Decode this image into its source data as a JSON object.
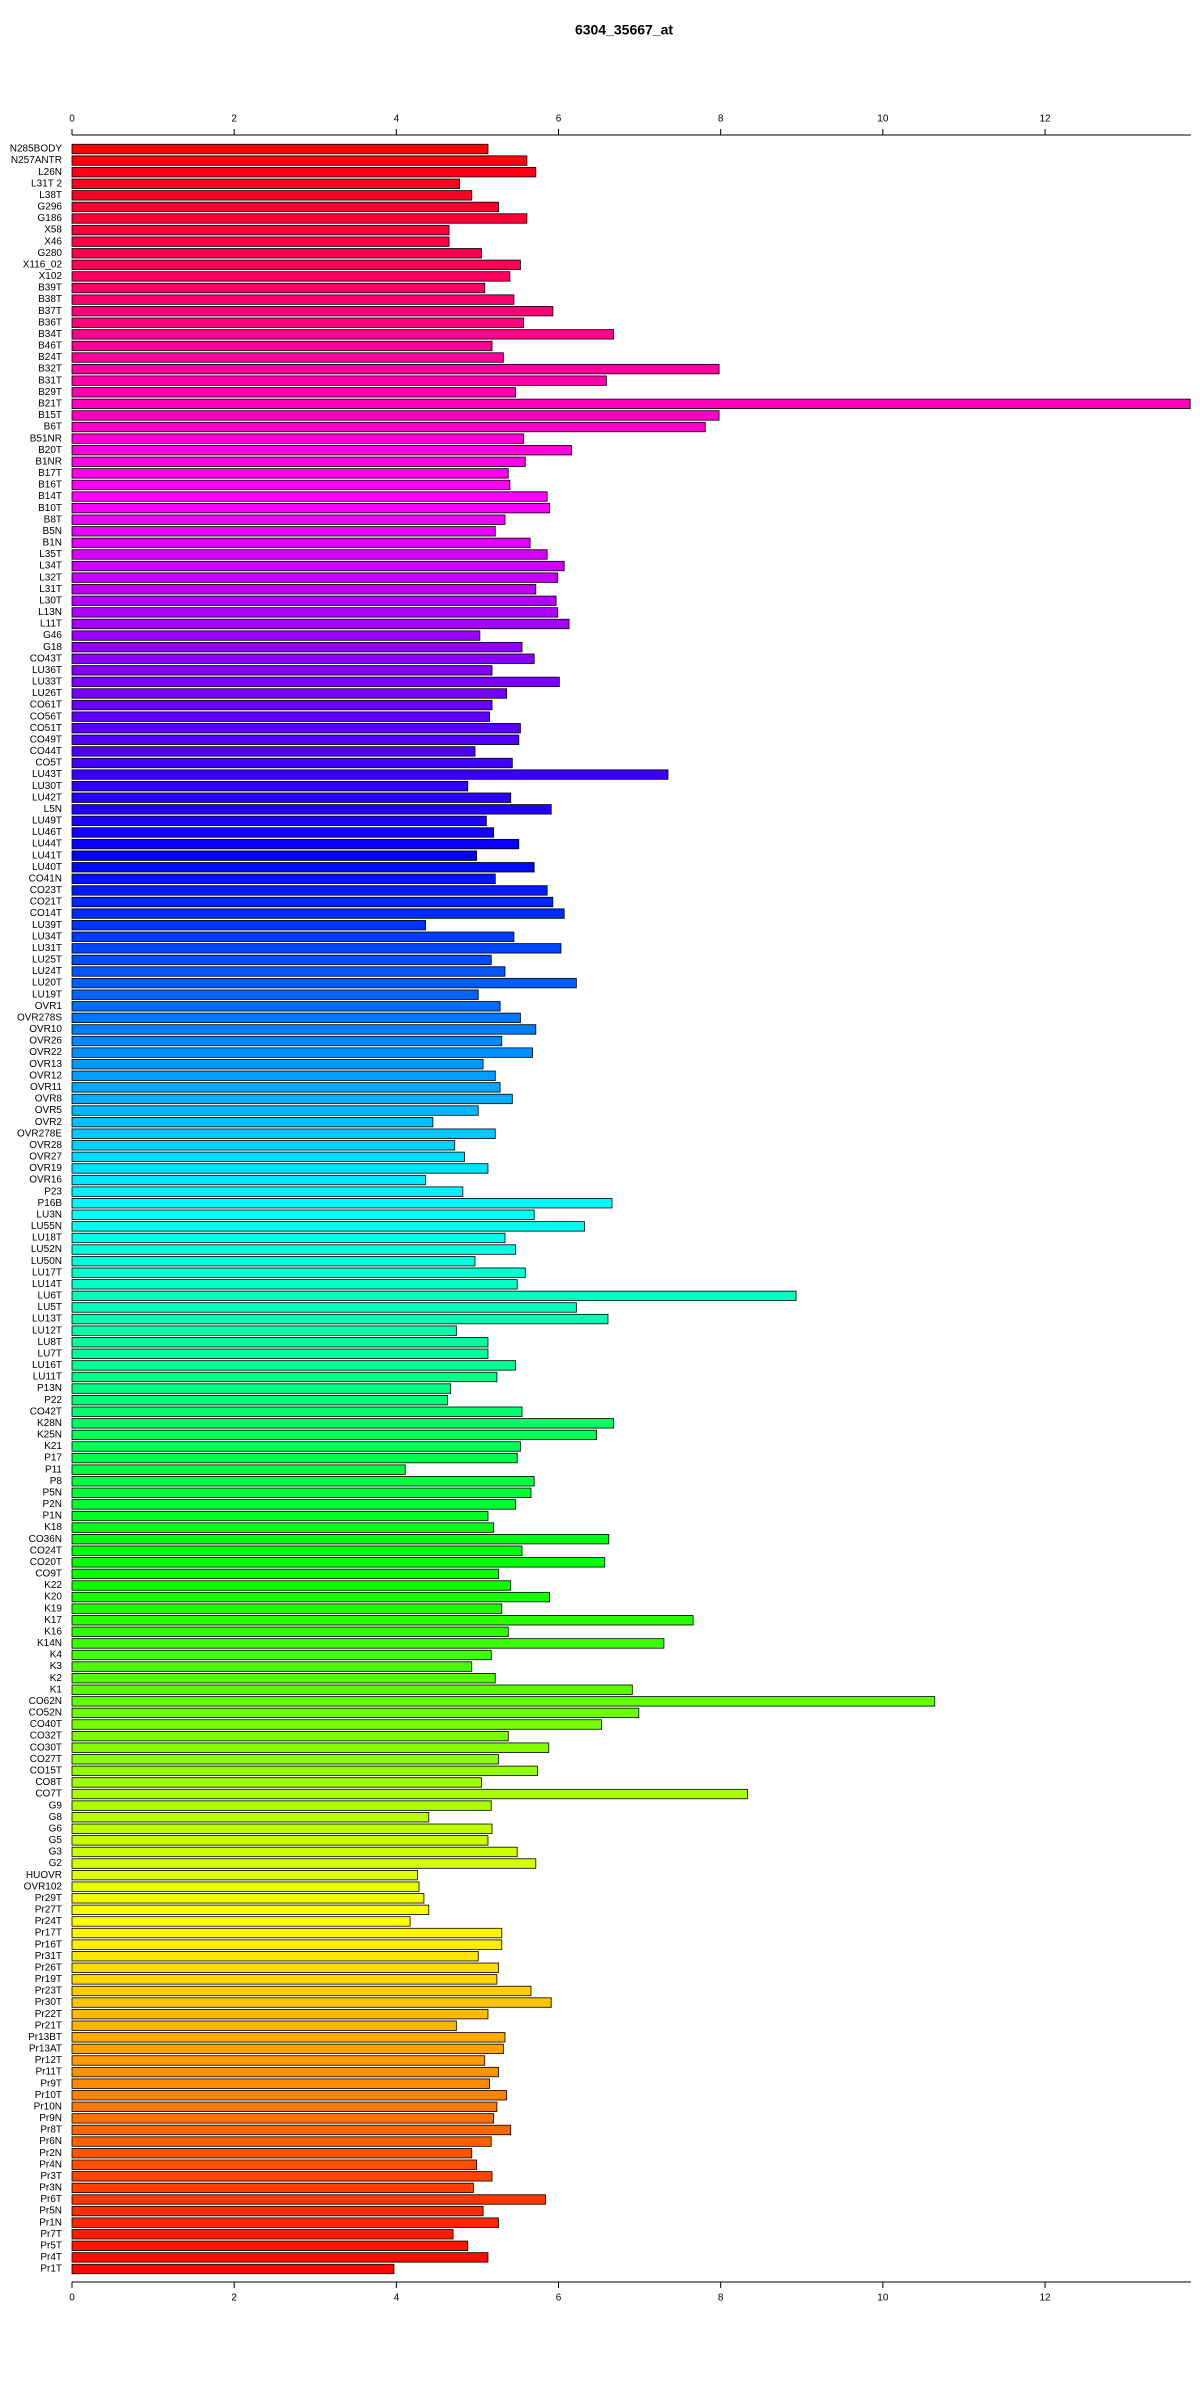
{
  "chart_data": {
    "type": "bar",
    "orientation": "horizontal",
    "title": "6304_35667_at",
    "categories": [
      "N285BODY",
      "N257ANTR",
      "L26N",
      "L31T 2",
      "L38T",
      "G296",
      "G186",
      "X58",
      "X46",
      "G280",
      "X116_02",
      "X102",
      "B39T",
      "B38T",
      "B37T",
      "B36T",
      "B34T",
      "B46T",
      "B24T",
      "B32T",
      "B31T",
      "B29T",
      "B21T",
      "B15T",
      "B6T",
      "B51NR",
      "B20T",
      "B1NR",
      "B17T",
      "B16T",
      "B14T",
      "B10T",
      "B8T",
      "B5N",
      "B1N",
      "L35T",
      "L34T",
      "L32T",
      "L31T",
      "L30T",
      "L13N",
      "L11T",
      "G46",
      "G18",
      "CO43T",
      "LU36T",
      "LU33T",
      "LU26T",
      "CO61T",
      "CO56T",
      "CO51T",
      "CO49T",
      "CO44T",
      "CO5T",
      "LU43T",
      "LU30T",
      "LU42T",
      "L5N",
      "LU49T",
      "LU46T",
      "LU44T",
      "LU41T",
      "LU40T",
      "CO41N",
      "CO23T",
      "CO21T",
      "CO14T",
      "LU39T",
      "LU34T",
      "LU31T",
      "LU25T",
      "LU24T",
      "LU20T",
      "LU19T",
      "OVR1",
      "OVR278S",
      "OVR10",
      "OVR26",
      "OVR22",
      "OVR13",
      "OVR12",
      "OVR11",
      "OVR8",
      "OVR5",
      "OVR2",
      "OVR278E",
      "OVR28",
      "OVR27",
      "OVR19",
      "OVR16",
      "P23",
      "P16B",
      "LU3N",
      "LU55N",
      "LU18T",
      "LU52N",
      "LU50N",
      "LU17T",
      "LU14T",
      "LU6T",
      "LU5T",
      "LU13T",
      "LU12T",
      "LU8T",
      "LU7T",
      "LU16T",
      "LU11T",
      "P13N",
      "P22",
      "CO42T",
      "K28N",
      "K25N",
      "K21",
      "P17",
      "P11",
      "P8",
      "P5N",
      "P2N",
      "P1N",
      "K18",
      "CO36N",
      "CO24T",
      "CO20T",
      "CO9T",
      "K22",
      "K20",
      "K19",
      "K17",
      "K16",
      "K14N",
      "K4",
      "K3",
      "K2",
      "K1",
      "CO62N",
      "CO52N",
      "CO40T",
      "CO32T",
      "CO30T",
      "CO27T",
      "CO15T",
      "CO8T",
      "CO7T",
      "G9",
      "G8",
      "G6",
      "G5",
      "G3",
      "G2",
      "HUOVR",
      "OVR102",
      "Pr29T",
      "Pr27T",
      "Pr24T",
      "Pr17T",
      "Pr16T",
      "Pr31T",
      "Pr26T",
      "Pr19T",
      "Pr23T",
      "Pr30T",
      "Pr22T",
      "Pr21T",
      "Pr13BT",
      "Pr13AT",
      "Pr12T",
      "Pr11T",
      "Pr9T",
      "Pr10T",
      "Pr10N",
      "Pr9N",
      "Pr8T",
      "Pr6N",
      "Pr2N",
      "Pr4N",
      "Pr3T",
      "Pr3N",
      "Pr6T",
      "Pr5N",
      "Pr1N",
      "Pr7T",
      "Pr5T",
      "Pr4T",
      "Pr1T"
    ],
    "values": [
      5.13,
      5.61,
      5.72,
      4.78,
      4.93,
      5.26,
      5.61,
      4.65,
      4.65,
      5.05,
      5.53,
      5.4,
      5.09,
      5.45,
      5.93,
      5.57,
      6.68,
      5.18,
      5.32,
      7.98,
      6.59,
      5.47,
      13.79,
      7.98,
      7.81,
      5.57,
      6.16,
      5.59,
      5.38,
      5.4,
      5.86,
      5.89,
      5.34,
      5.22,
      5.65,
      5.86,
      6.07,
      5.99,
      5.72,
      5.97,
      5.99,
      6.13,
      5.03,
      5.55,
      5.7,
      5.18,
      6.01,
      5.36,
      5.18,
      5.15,
      5.53,
      5.51,
      4.97,
      5.43,
      7.35,
      4.88,
      5.41,
      5.91,
      5.11,
      5.2,
      5.51,
      4.99,
      5.7,
      5.22,
      5.86,
      5.93,
      6.07,
      4.36,
      5.45,
      6.03,
      5.17,
      5.34,
      6.22,
      5.01,
      5.28,
      5.53,
      5.72,
      5.3,
      5.68,
      5.07,
      5.22,
      5.28,
      5.43,
      5.01,
      4.45,
      5.22,
      4.72,
      4.84,
      5.13,
      4.36,
      4.82,
      6.66,
      5.7,
      6.32,
      5.34,
      5.47,
      4.97,
      5.59,
      5.49,
      8.93,
      6.22,
      6.61,
      4.74,
      5.13,
      5.13,
      5.47,
      5.24,
      4.67,
      4.63,
      5.55,
      6.68,
      6.47,
      5.53,
      5.49,
      4.11,
      5.7,
      5.66,
      5.47,
      5.13,
      5.2,
      6.62,
      5.55,
      6.57,
      5.26,
      5.41,
      5.89,
      5.3,
      7.66,
      5.38,
      7.3,
      5.17,
      4.93,
      5.22,
      6.91,
      10.64,
      6.99,
      6.53,
      5.38,
      5.88,
      5.26,
      5.74,
      5.05,
      8.33,
      5.17,
      4.4,
      5.18,
      5.13,
      5.49,
      5.72,
      4.26,
      4.28,
      4.34,
      4.4,
      4.17,
      5.3,
      5.3,
      5.01,
      5.26,
      5.24,
      5.66,
      5.91,
      5.13,
      4.74,
      5.34,
      5.32,
      5.09,
      5.26,
      5.15,
      5.36,
      5.24,
      5.2,
      5.41,
      5.17,
      4.93,
      4.99,
      5.18,
      4.95,
      5.84,
      5.07,
      5.26,
      4.7,
      4.88,
      5.13,
      3.97
    ],
    "xlim": [
      0,
      13.8
    ],
    "xticks": [
      0,
      2,
      4,
      6,
      8,
      10,
      12
    ],
    "palette": "rainbow"
  }
}
